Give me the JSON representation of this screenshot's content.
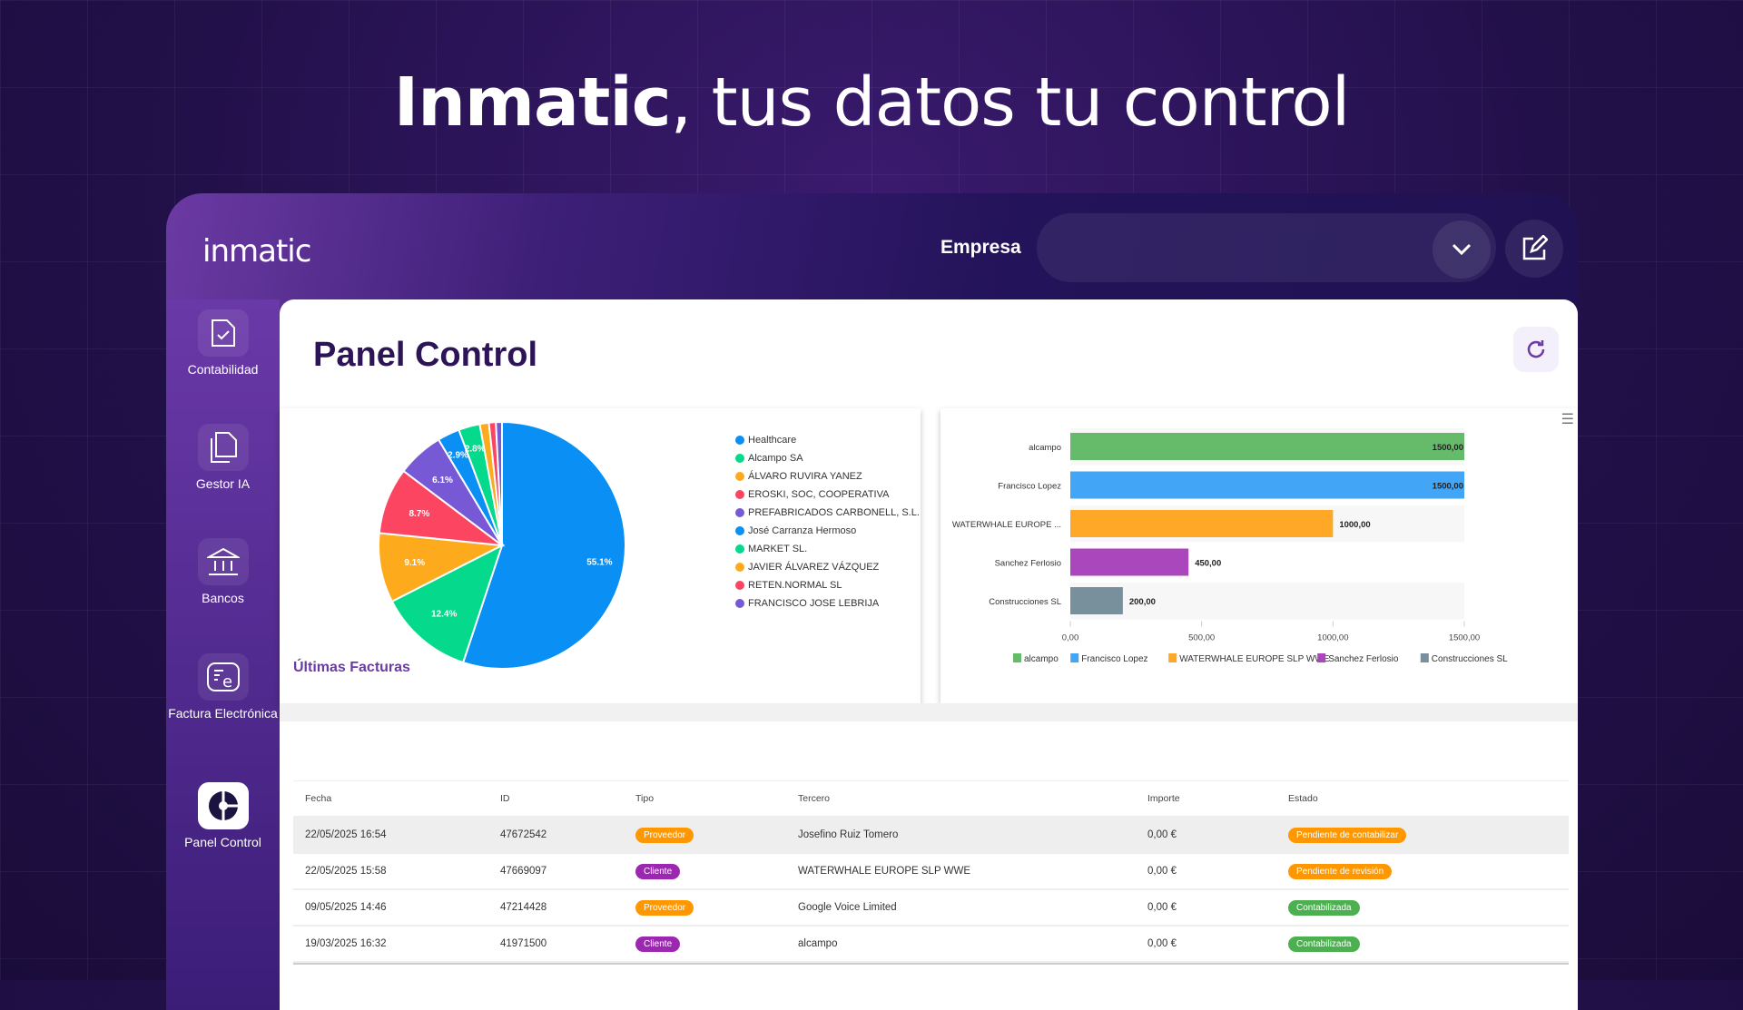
{
  "hero": {
    "brand": "Inmatic",
    "rest": ", tus datos tu control"
  },
  "header": {
    "logo": "inmatic",
    "empresa_label": "Empresa",
    "empresa_value": ""
  },
  "sidebar": {
    "items": [
      {
        "label": "Contabilidad",
        "icon": "document-check-icon"
      },
      {
        "label": "Gestor IA",
        "icon": "documents-copy-icon"
      },
      {
        "label": "Bancos",
        "icon": "bank-icon"
      },
      {
        "label": "Factura Electrónica",
        "icon": "e-invoice-icon"
      },
      {
        "label": "Panel Control",
        "icon": "panel-control-icon",
        "active": true
      }
    ]
  },
  "page": {
    "title": "Panel Control"
  },
  "chart_data": [
    {
      "type": "pie",
      "series": [
        {
          "name": "Healthcare",
          "value": 55.1,
          "label": "55.1%",
          "color": "#0a8ff5"
        },
        {
          "name": "Alcampo SA",
          "value": 12.4,
          "label": "12.4%",
          "color": "#05d98b"
        },
        {
          "name": "ÁLVARO RUVIRA YANEZ",
          "value": 9.1,
          "label": "9.1%",
          "color": "#fdaa1d"
        },
        {
          "name": "EROSKI, SOC, COOPERATIVA",
          "value": 8.7,
          "label": "8.7%",
          "color": "#fc4560"
        },
        {
          "name": "PREFABRICADOS CARBONELL, S.L.",
          "value": 6.1,
          "label": "6.1%",
          "color": "#7759d6"
        },
        {
          "name": "José Carranza Hermoso",
          "value": 2.9,
          "label": "2.9%",
          "color": "#0a8ff5"
        },
        {
          "name": "MARKET SL.",
          "value": 2.8,
          "label": "2.8%",
          "color": "#05d98b"
        },
        {
          "name": "JAVIER ÁLVAREZ VÁZQUEZ",
          "value": 1.2,
          "label": "",
          "color": "#fdaa1d"
        },
        {
          "name": "RETEN.NORMAL SL",
          "value": 0.9,
          "label": "",
          "color": "#fc4560"
        },
        {
          "name": "FRANCISCO JOSE LEBRIJA",
          "value": 0.8,
          "label": "",
          "color": "#7759d6"
        }
      ],
      "legend": "right"
    },
    {
      "type": "bar",
      "orientation": "horizontal",
      "categories": [
        "alcampo",
        "Francisco Lopez",
        "WATERWHALE EUROPE ...",
        "Sanchez Ferlosio",
        "Construcciones SL"
      ],
      "values": [
        1500,
        1500,
        1000,
        450,
        200
      ],
      "value_labels": [
        "1500,00",
        "1500,00",
        "1000,00",
        "450,00",
        "200,00"
      ],
      "colors": [
        "#66bb6a",
        "#42a5f5",
        "#ffa726",
        "#ab47bc",
        "#78909c"
      ],
      "xlim": [
        0,
        1500
      ],
      "xticks": [
        "0,00",
        "500,00",
        "1000,00",
        "1500,00"
      ],
      "legend_entries": [
        "alcampo",
        "Francisco Lopez",
        "WATERWHALE EUROPE SLP WWE",
        "Sanchez Ferlosio",
        "Construcciones SL"
      ],
      "legend": "bottom"
    }
  ],
  "invoices": {
    "title": "Últimas Facturas",
    "columns": [
      "Fecha",
      "ID",
      "Tipo",
      "Tercero",
      "Importe",
      "Estado"
    ],
    "rows": [
      {
        "fecha": "22/05/2025 16:54",
        "id": "47672542",
        "tipo": "Proveedor",
        "tercero": "Josefino Ruiz Tomero",
        "importe": "0,00 €",
        "estado": "Pendiente de contabilizar"
      },
      {
        "fecha": "22/05/2025 15:58",
        "id": "47669097",
        "tipo": "Cliente",
        "tercero": "WATERWHALE EUROPE SLP WWE",
        "importe": "0,00 €",
        "estado": "Pendiente de revisión"
      },
      {
        "fecha": "09/05/2025 14:46",
        "id": "47214428",
        "tipo": "Proveedor",
        "tercero": "Google Voice Limited",
        "importe": "0,00 €",
        "estado": "Contabilizada"
      },
      {
        "fecha": "19/03/2025 16:32",
        "id": "41971500",
        "tipo": "Cliente",
        "tercero": "alcampo",
        "importe": "0,00 €",
        "estado": "Contabilizada"
      }
    ]
  },
  "colors": {
    "proveedor": "#ff9800",
    "cliente": "#9c27b0",
    "pendiente": "#ff9800",
    "contabilizada": "#4caf50",
    "accent": "#6b3aa3"
  }
}
